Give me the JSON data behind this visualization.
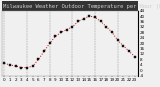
{
  "title": "Milwaukee Weather Outdoor Temperature per Hour (Last 24 Hours)",
  "hours": [
    0,
    1,
    2,
    3,
    4,
    5,
    6,
    7,
    8,
    9,
    10,
    11,
    12,
    13,
    14,
    15,
    16,
    17,
    18,
    19,
    20,
    21,
    22,
    23
  ],
  "temps": [
    5,
    4,
    3,
    2,
    2,
    3,
    8,
    14,
    20,
    25,
    28,
    30,
    32,
    36,
    38,
    40,
    39,
    36,
    32,
    28,
    22,
    18,
    14,
    10
  ],
  "ylim": [
    -4,
    44
  ],
  "xlim": [
    -0.5,
    23.5
  ],
  "line_color": "#cc0000",
  "marker_color": "#111111",
  "bg_color": "#f0f0f0",
  "title_bg": "#333333",
  "title_fg": "#cccccc",
  "grid_color": "#888888",
  "ytick_vals": [
    -4,
    0,
    4,
    8,
    12,
    16,
    20,
    24,
    28,
    32,
    36,
    40,
    44
  ],
  "ytick_labels": [
    "-4",
    "0",
    "4",
    "8",
    "12",
    "16",
    "20",
    "24",
    "28",
    "32",
    "36",
    "40",
    "44"
  ],
  "xtick_vals": [
    0,
    1,
    2,
    3,
    4,
    5,
    6,
    7,
    8,
    9,
    10,
    11,
    12,
    13,
    14,
    15,
    16,
    17,
    18,
    19,
    20,
    21,
    22,
    23
  ],
  "vgrid_every": 4,
  "xlabel_fontsize": 3.0,
  "ylabel_fontsize": 3.0,
  "title_fontsize": 4.0,
  "line_width": 0.7,
  "marker_size": 1.5
}
